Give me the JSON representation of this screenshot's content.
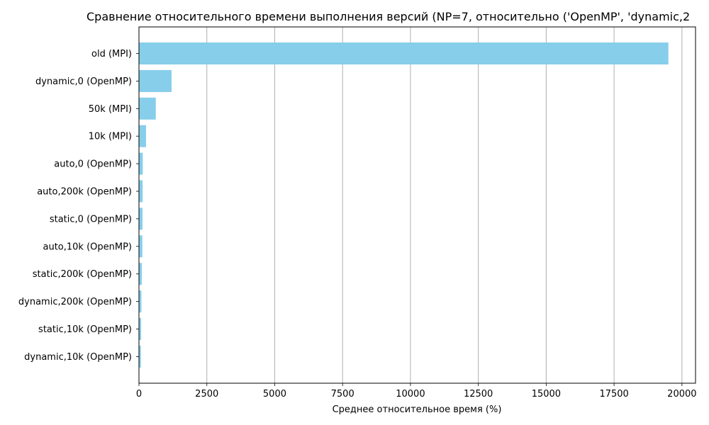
{
  "chart_data": {
    "type": "bar",
    "orientation": "horizontal",
    "title": "Сравнение относительного времени выполнения версий (NP=7, относительно ('OpenMP', 'dynamic,2",
    "xlabel": "Среднее относительное время (%)",
    "ylabel": "",
    "categories": [
      "old (MPI)",
      "dynamic,0 (OpenMP)",
      "50k (MPI)",
      "10k (MPI)",
      "auto,0 (OpenMP)",
      "auto,200k (OpenMP)",
      "static,0 (OpenMP)",
      "auto,10k (OpenMP)",
      "static,200k (OpenMP)",
      "dynamic,200k (OpenMP)",
      "static,10k (OpenMP)",
      "dynamic,10k (OpenMP)"
    ],
    "values": [
      19500,
      1200,
      620,
      260,
      140,
      135,
      130,
      125,
      105,
      90,
      80,
      70
    ],
    "xlim": [
      0,
      20500
    ],
    "xticks": [
      0,
      2500,
      5000,
      7500,
      10000,
      12500,
      15000,
      17500,
      20000
    ],
    "xtick_labels": [
      "0",
      "2500",
      "5000",
      "7500",
      "10000",
      "12500",
      "15000",
      "17500",
      "20000"
    ],
    "grid": "x-axis vertical lines",
    "bar_color": "#87ceeb",
    "grid_color": "#b0b0b0"
  }
}
